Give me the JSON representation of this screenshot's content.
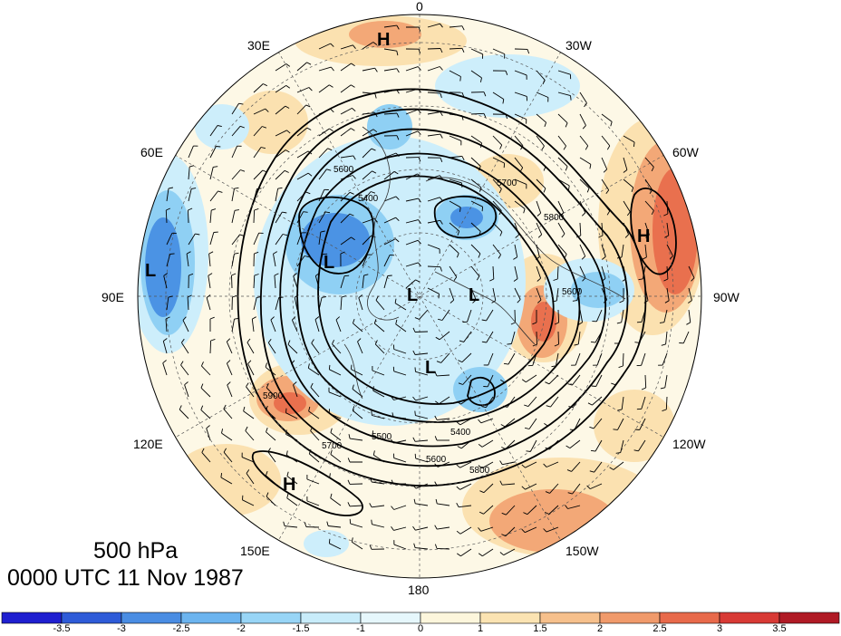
{
  "title": {
    "level": "500 hPa",
    "time": "0000 UTC 11 Nov 1987"
  },
  "longitude_labels": {
    "lon_0": "0",
    "lon_30w": "30W",
    "lon_60w": "60W",
    "lon_90w": "90W",
    "lon_120w": "120W",
    "lon_150w": "150W",
    "lon_180": "180",
    "lon_150e": "150E",
    "lon_120e": "120E",
    "lon_90e": "90E",
    "lon_60e": "60E",
    "lon_30e": "30E"
  },
  "pressure_centers": [
    {
      "type": "H",
      "label": "H"
    },
    {
      "type": "H",
      "label": "H"
    },
    {
      "type": "H",
      "label": "H"
    },
    {
      "type": "L",
      "label": "L"
    },
    {
      "type": "L",
      "label": "L"
    },
    {
      "type": "L",
      "label": "L"
    },
    {
      "type": "L",
      "label": "L"
    },
    {
      "type": "L",
      "label": "L"
    }
  ],
  "contour_labels": [
    "5400",
    "5600",
    "5700",
    "5800",
    "5900",
    "5600",
    "5700",
    "5800",
    "5400",
    "5500",
    "5600"
  ],
  "colorbar": {
    "ticks": [
      "-3.5",
      "-3",
      "-2.5",
      "-2",
      "-1.5",
      "-1",
      "0",
      "1",
      "1.5",
      "2",
      "2.5",
      "3",
      "3.5"
    ],
    "colors": [
      "#1f1fd0",
      "#2e5bd8",
      "#4a8de3",
      "#6cb4ef",
      "#98d5f6",
      "#c8ecfa",
      "#e6f7fc",
      "#fdf6dc",
      "#fbe3b2",
      "#f6c08c",
      "#f09a6b",
      "#e86a4b",
      "#d83a35",
      "#b01a25"
    ]
  },
  "shading_colors": {
    "background": "#fdf8e6",
    "light_blue": "#cdeefb",
    "mid_blue": "#8fd0f4",
    "dark_blue": "#4b93e4",
    "light_orange": "#fbe1b0",
    "mid_orange": "#f3a877",
    "dark_orange": "#e9704e"
  }
}
